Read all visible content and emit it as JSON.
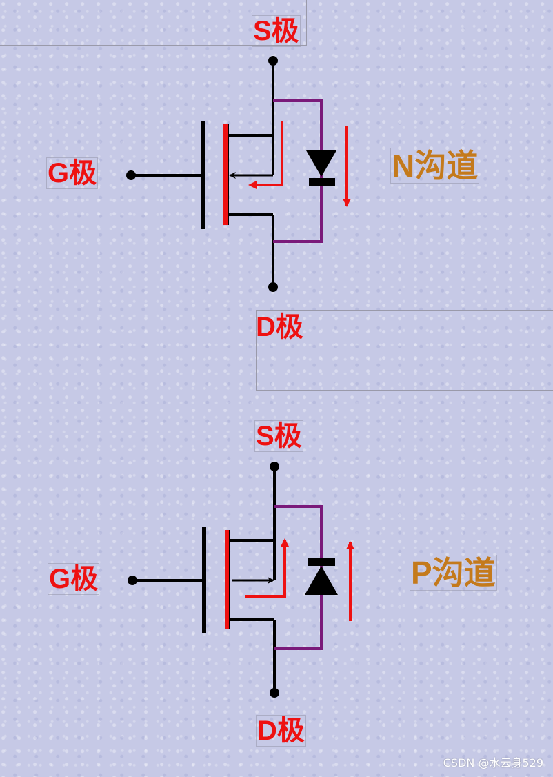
{
  "top": {
    "source_label": "S极",
    "gate_label": "G极",
    "drain_label": "D极",
    "channel_label": "N沟道"
  },
  "bottom": {
    "source_label": "S极",
    "gate_label": "G极",
    "drain_label": "D极",
    "channel_label": "P沟道"
  },
  "colors": {
    "wire": "#000000",
    "channel_bar": "#ee1111",
    "body_loop": "#7a1a7a",
    "current_arrow": "#ee1111",
    "pin_text": "#ee1111",
    "channel_text": "#c47a1c"
  },
  "watermark": "CSDN @水云身529"
}
